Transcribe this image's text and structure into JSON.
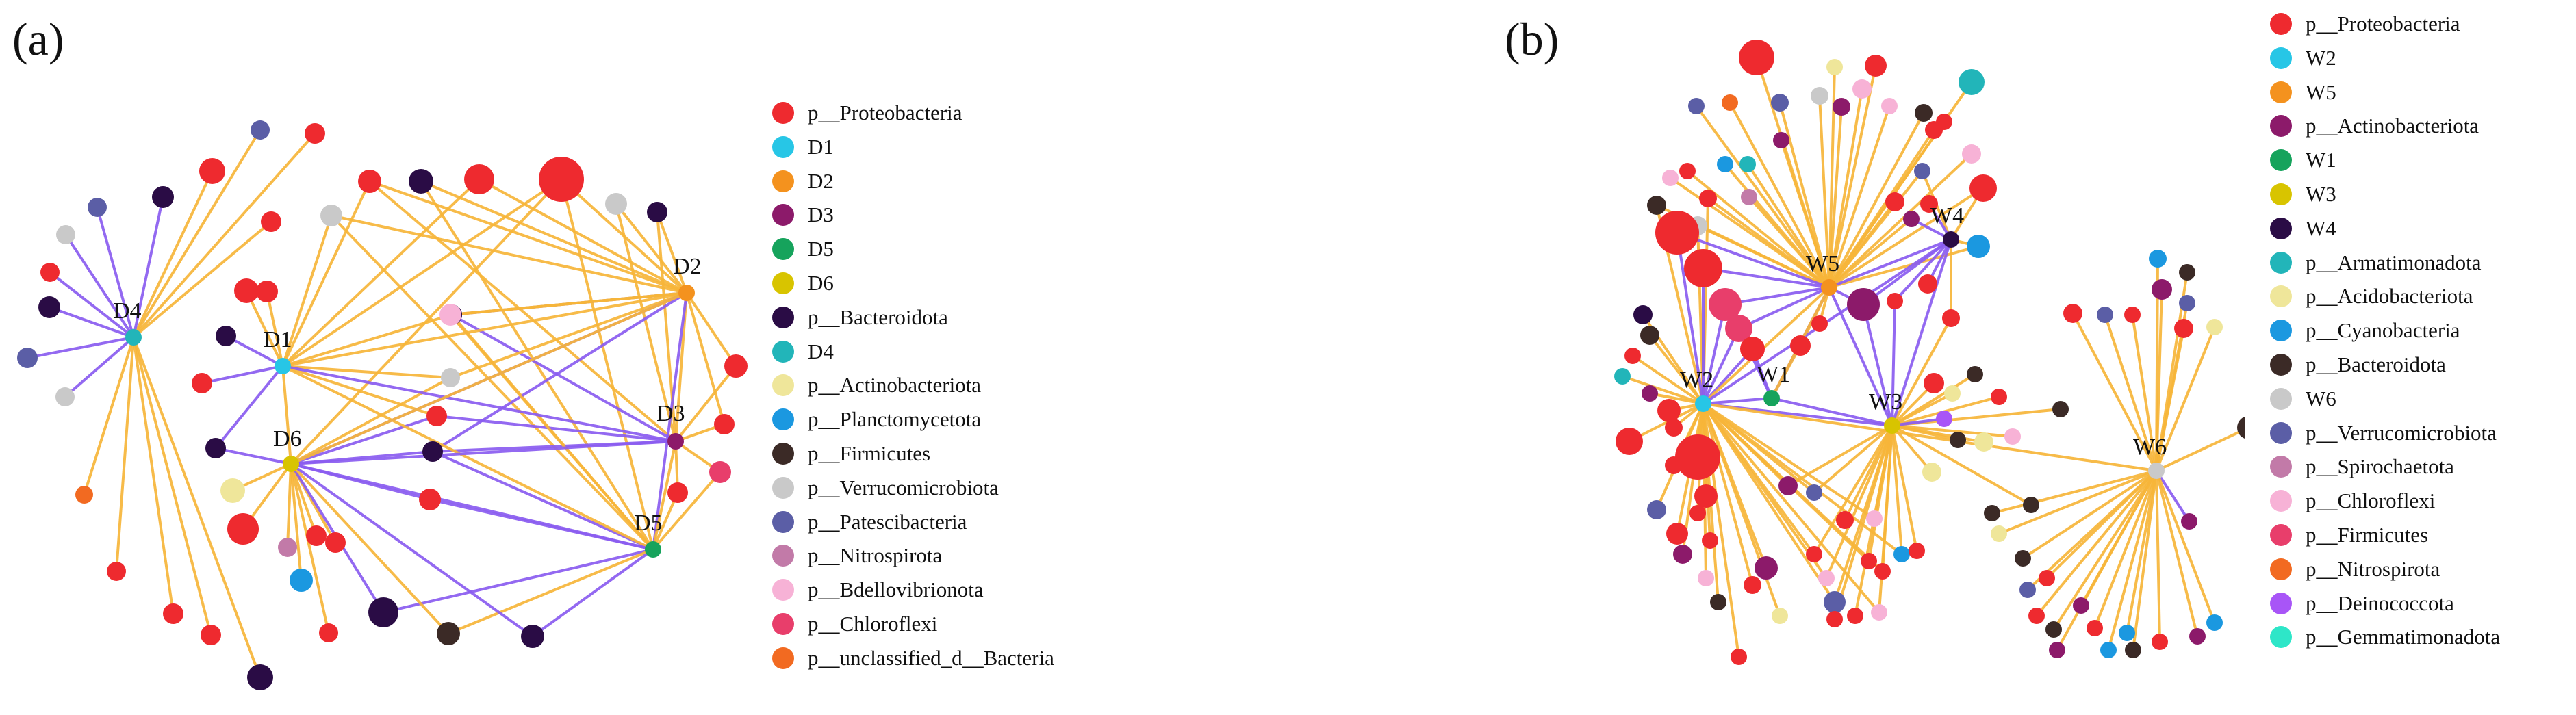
{
  "colors": {
    "edge_orange": "#f6b53a",
    "edge_purple": "#8a5cf0"
  },
  "panel_a": {
    "label": "(a)",
    "hubs": [
      {
        "id": "D4",
        "label": "D4",
        "color": "#22b5b9"
      },
      {
        "id": "D1",
        "label": "D1",
        "color": "#27c6e6"
      },
      {
        "id": "D6",
        "label": "D6",
        "color": "#d8c400"
      },
      {
        "id": "D2",
        "label": "D2",
        "color": "#f4921e"
      },
      {
        "id": "D3",
        "label": "D3",
        "color": "#8c1a6a"
      },
      {
        "id": "D5",
        "label": "D5",
        "color": "#16a35c"
      }
    ],
    "legend": [
      {
        "label": "p__Proteobacteria",
        "color": "#ee2a2f"
      },
      {
        "label": "D1",
        "color": "#27c6e6"
      },
      {
        "label": "D2",
        "color": "#f4921e"
      },
      {
        "label": "D3",
        "color": "#8c1a6a"
      },
      {
        "label": "D5",
        "color": "#16a35c"
      },
      {
        "label": "D6",
        "color": "#d8c400"
      },
      {
        "label": "p__Bacteroidota",
        "color": "#2a0c45"
      },
      {
        "label": "D4",
        "color": "#22b5b9"
      },
      {
        "label": "p__Actinobacteriota",
        "color": "#efe69a"
      },
      {
        "label": "p__Planctomycetota",
        "color": "#1b98e0"
      },
      {
        "label": "p__Firmicutes",
        "color": "#3b2a26"
      },
      {
        "label": "p__Verrucomicrobiota",
        "color": "#c9c9c9"
      },
      {
        "label": "p__Patescibacteria",
        "color": "#5b5ea6"
      },
      {
        "label": "p__Nitrospirota",
        "color": "#c27aa8"
      },
      {
        "label": "p__Bdellovibrionota",
        "color": "#f7b2d6"
      },
      {
        "label": "p__Chloroflexi",
        "color": "#e83e6b"
      },
      {
        "label": "p__unclassified_d__Bacteria",
        "color": "#f26a21"
      }
    ]
  },
  "panel_b": {
    "label": "(b)",
    "hubs": [
      {
        "id": "W2",
        "label": "W2",
        "color": "#27c6e6"
      },
      {
        "id": "W5",
        "label": "W5",
        "color": "#f4921e"
      },
      {
        "id": "W1",
        "label": "W1",
        "color": "#16a35c"
      },
      {
        "id": "W3",
        "label": "W3",
        "color": "#d8c400"
      },
      {
        "id": "W4",
        "label": "W4",
        "color": "#2a0c45"
      },
      {
        "id": "W6",
        "label": "W6",
        "color": "#c9c9c9"
      }
    ],
    "legend": [
      {
        "label": "p__Proteobacteria",
        "color": "#ee2a2f"
      },
      {
        "label": "W2",
        "color": "#27c6e6"
      },
      {
        "label": "W5",
        "color": "#f4921e"
      },
      {
        "label": "p__Actinobacteriota",
        "color": "#8c1a6a"
      },
      {
        "label": "W1",
        "color": "#16a35c"
      },
      {
        "label": "W3",
        "color": "#d8c400"
      },
      {
        "label": "W4",
        "color": "#2a0c45"
      },
      {
        "label": "p__Armatimonadota",
        "color": "#22b5b9"
      },
      {
        "label": "p__Acidobacteriota",
        "color": "#efe69a"
      },
      {
        "label": "p__Cyanobacteria",
        "color": "#1b98e0"
      },
      {
        "label": "p__Bacteroidota",
        "color": "#3b2a26"
      },
      {
        "label": "W6",
        "color": "#c9c9c9"
      },
      {
        "label": "p__Verrucomicrobiota",
        "color": "#5b5ea6"
      },
      {
        "label": "p__Spirochaetota",
        "color": "#c27aa8"
      },
      {
        "label": "p__Chloroflexi",
        "color": "#f7b2d6"
      },
      {
        "label": "p__Firmicutes",
        "color": "#e83e6b"
      },
      {
        "label": "p__Nitrospirota",
        "color": "#f26a21"
      },
      {
        "label": "p__Deinococcota",
        "color": "#a855f7"
      },
      {
        "label": "p__Gemmatimonadota",
        "color": "#2ee6c8"
      }
    ]
  }
}
